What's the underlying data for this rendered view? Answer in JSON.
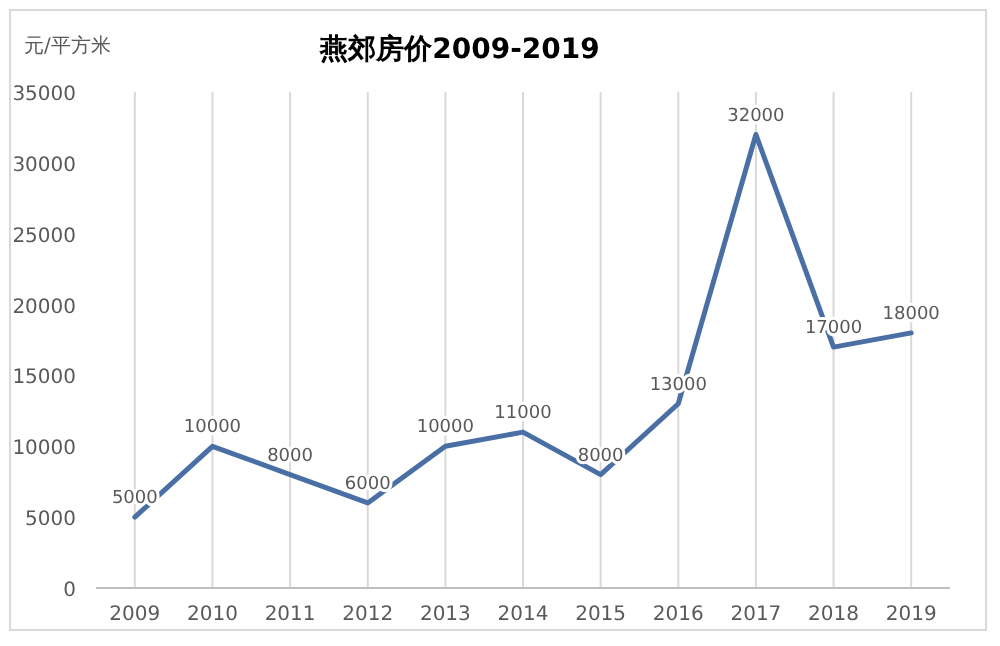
{
  "chart_data": {
    "type": "line",
    "title": "燕郊房价2009-2019",
    "ylabel": "元/平方米",
    "categories": [
      "2009",
      "2010",
      "2011",
      "2012",
      "2013",
      "2014",
      "2015",
      "2016",
      "2017",
      "2018",
      "2019"
    ],
    "series": [
      {
        "color": "#4a6fa5",
        "values": [
          5000,
          10000,
          8000,
          6000,
          10000,
          11000,
          8000,
          13000,
          32000,
          17000,
          18000
        ]
      }
    ],
    "ylim": [
      0,
      35000
    ],
    "yticks": [
      0,
      5000,
      10000,
      15000,
      20000,
      25000,
      30000,
      35000
    ],
    "grid": "x",
    "data_labels": true,
    "marker": "none",
    "line_style": "solid"
  }
}
